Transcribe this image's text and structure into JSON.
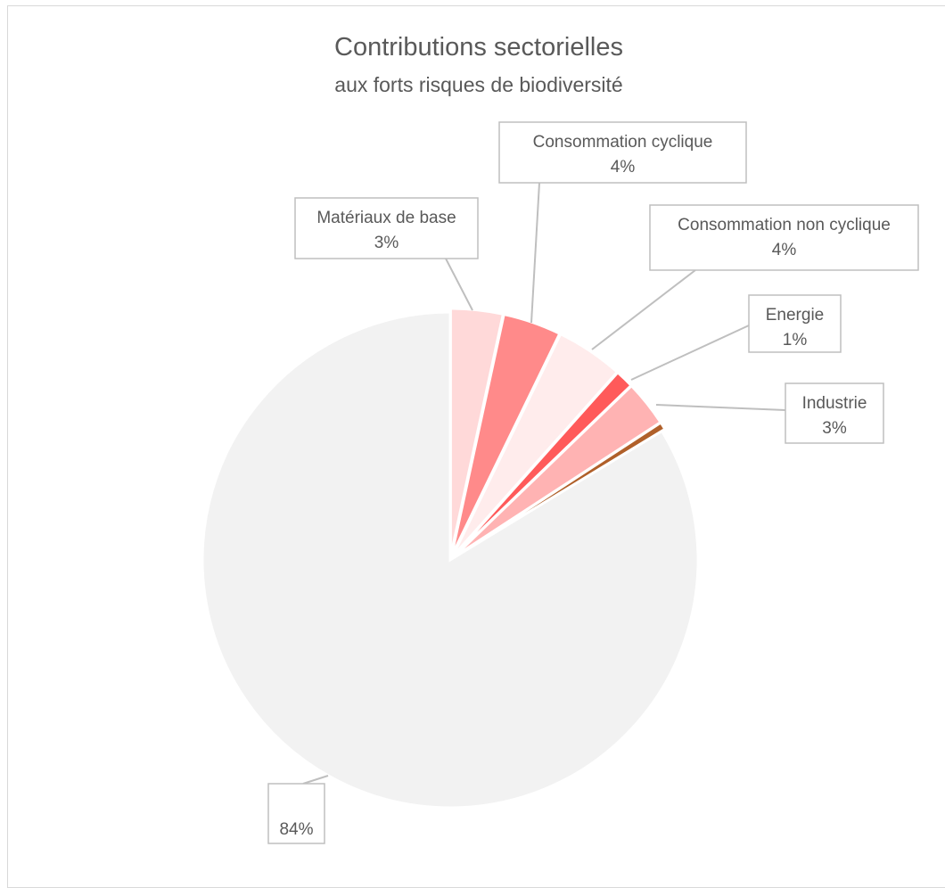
{
  "chart_data": {
    "type": "pie",
    "title": "Contributions sectorielles",
    "subtitle": "aux forts risques de biodiversité",
    "slices": [
      {
        "name": "Matériaux de base",
        "label": "Matériaux de base",
        "value_label": "3%",
        "value": 3.4,
        "color": "#ffd9d9"
      },
      {
        "name": "Consommation cyclique",
        "label": "Consommation cyclique",
        "value_label": "4%",
        "value": 3.8,
        "color": "#ff8a8a"
      },
      {
        "name": "Consommation non cyclique",
        "label": "Consommation non cyclique",
        "value_label": "4%",
        "value": 4.4,
        "color": "#ffecec"
      },
      {
        "name": "Energie",
        "label": "Energie",
        "value_label": "1%",
        "value": 1.2,
        "color": "#ff5a5a"
      },
      {
        "name": "Industrie",
        "label": "Industrie",
        "value_label": "3%",
        "value": 3.0,
        "color": "#ffb3b3"
      },
      {
        "name": "",
        "label": "",
        "value_label": "",
        "value": 0.5,
        "color": "#b0602a"
      },
      {
        "name": "",
        "label": "",
        "value_label": "84%",
        "value": 83.7,
        "color": "#f2f2f2"
      }
    ]
  }
}
